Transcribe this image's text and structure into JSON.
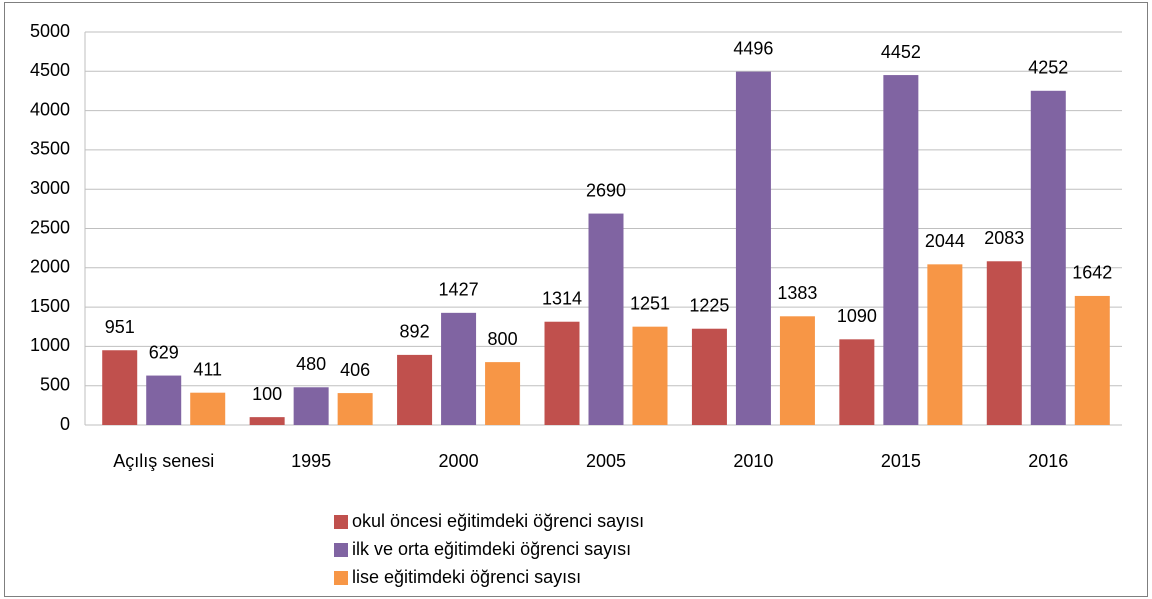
{
  "chart_data": {
    "type": "bar",
    "categories": [
      "Açılış senesi",
      "1995",
      "2000",
      "2005",
      "2010",
      "2015",
      "2016"
    ],
    "series": [
      {
        "name": "okul öncesi eğitimdeki öğrenci sayısı",
        "color": "#c0504d",
        "values": [
          951,
          100,
          892,
          1314,
          1225,
          1090,
          2083
        ]
      },
      {
        "name": "ilk ve orta eğitimdeki öğrenci sayısı",
        "color": "#8064a2",
        "values": [
          629,
          480,
          1427,
          2690,
          4496,
          4452,
          4252
        ]
      },
      {
        "name": "lise eğitimdeki öğrenci sayısı",
        "color": "#f79646",
        "values": [
          411,
          406,
          800,
          1251,
          1383,
          2044,
          1642
        ]
      }
    ],
    "ylim": [
      0,
      5000
    ],
    "yticks": [
      0,
      500,
      1000,
      1500,
      2000,
      2500,
      3000,
      3500,
      4000,
      4500,
      5000
    ],
    "grid": true,
    "legend": "bottom"
  }
}
